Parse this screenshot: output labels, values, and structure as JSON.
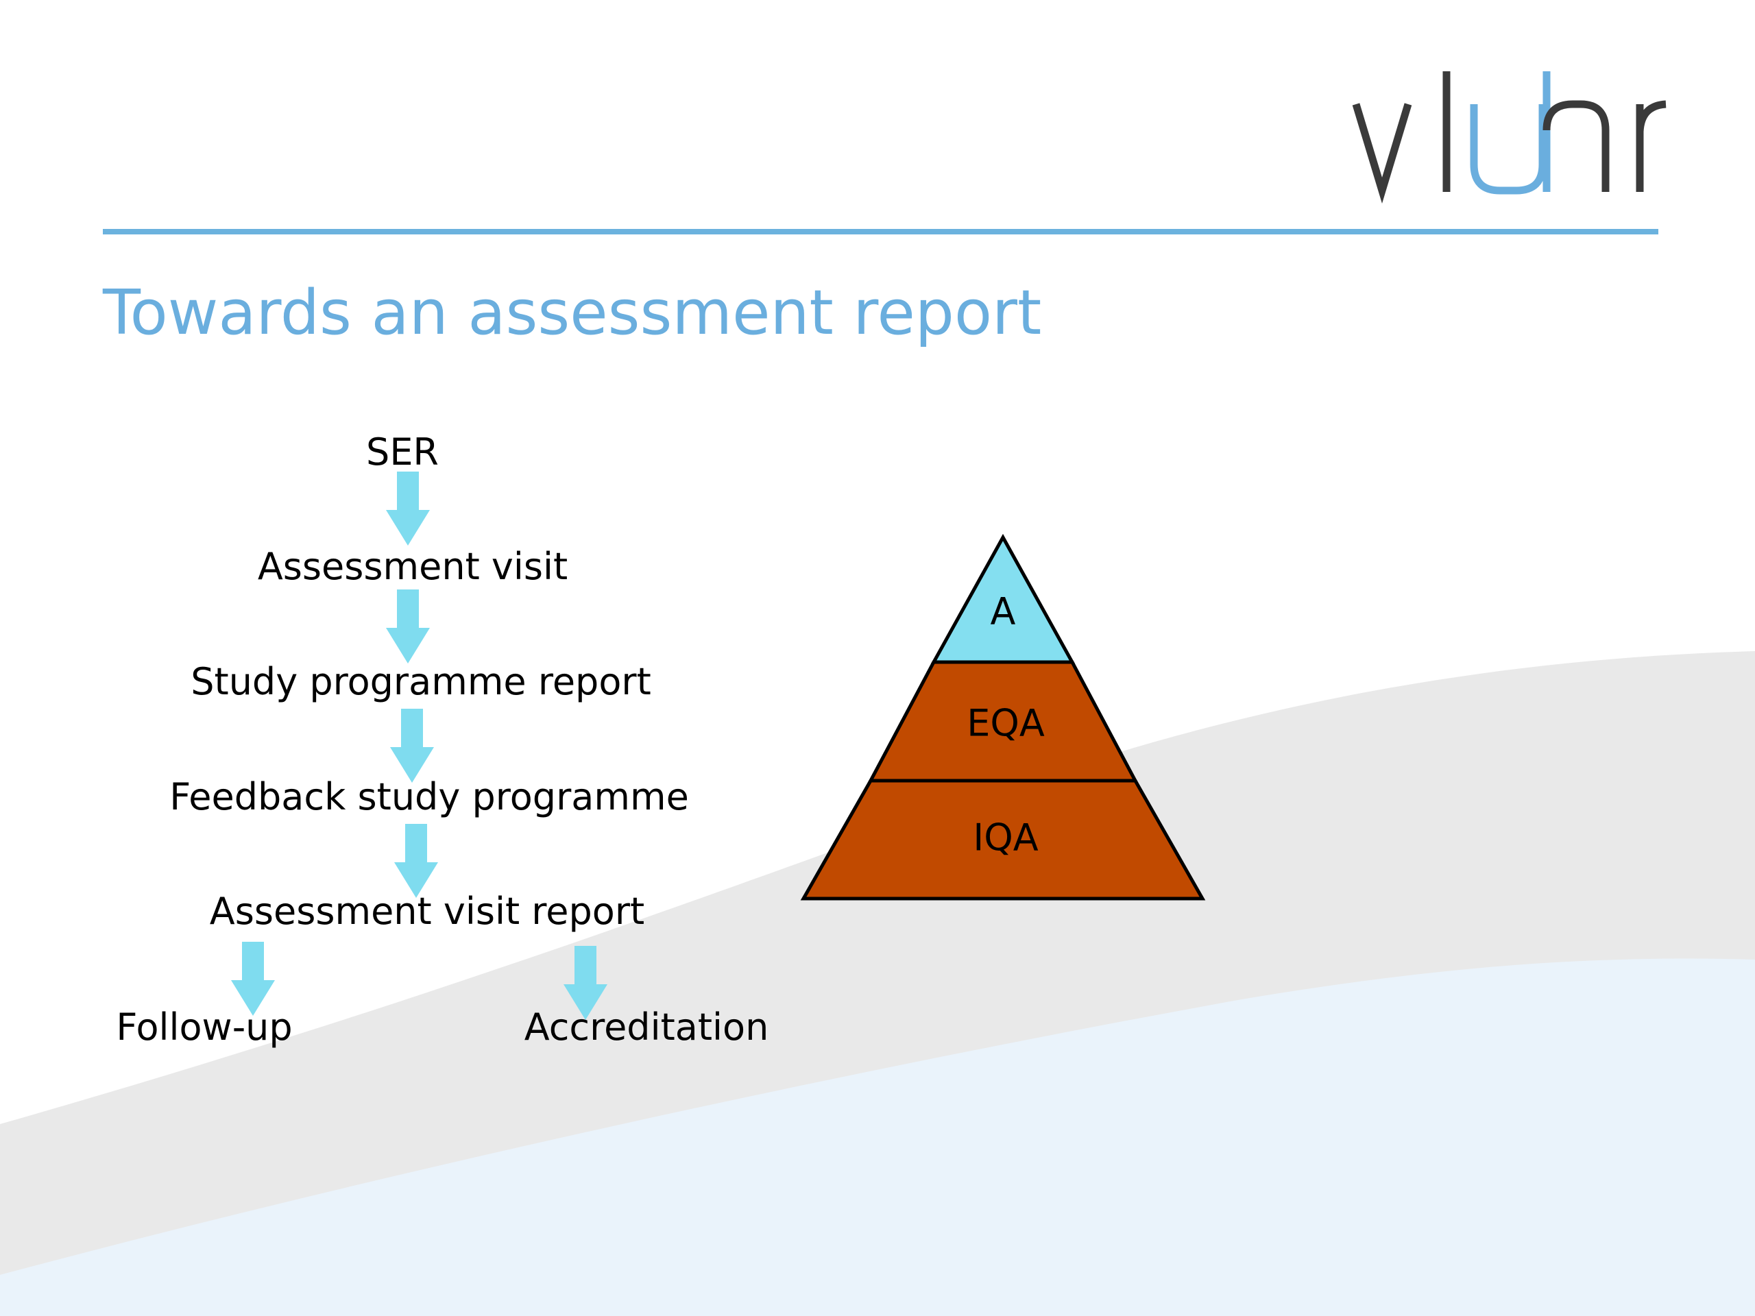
{
  "logo": {
    "text": "vluhr",
    "colors": {
      "dark": "#3a3a3a",
      "accent": "#6aaede"
    }
  },
  "slide": {
    "title": "Towards an assessment report",
    "title_color": "#6aaede",
    "rule_color": "#6bb2de"
  },
  "flow": {
    "arrow_color": "#7fdcef",
    "steps": [
      "SER",
      "Assessment visit",
      "Study programme report",
      "Feedback study programme",
      "Assessment visit report"
    ],
    "outcomes": [
      "Follow-up",
      "Accreditation"
    ]
  },
  "pyramid": {
    "levels": [
      {
        "label": "A",
        "color": "#84dff0"
      },
      {
        "label": "EQA",
        "color": "#c14a00"
      },
      {
        "label": "IQA",
        "color": "#c14a00"
      }
    ],
    "outline_color": "#000000"
  },
  "background": {
    "wave_gray": "#e9e9e9",
    "wave_blue": "#eaf3fb"
  }
}
